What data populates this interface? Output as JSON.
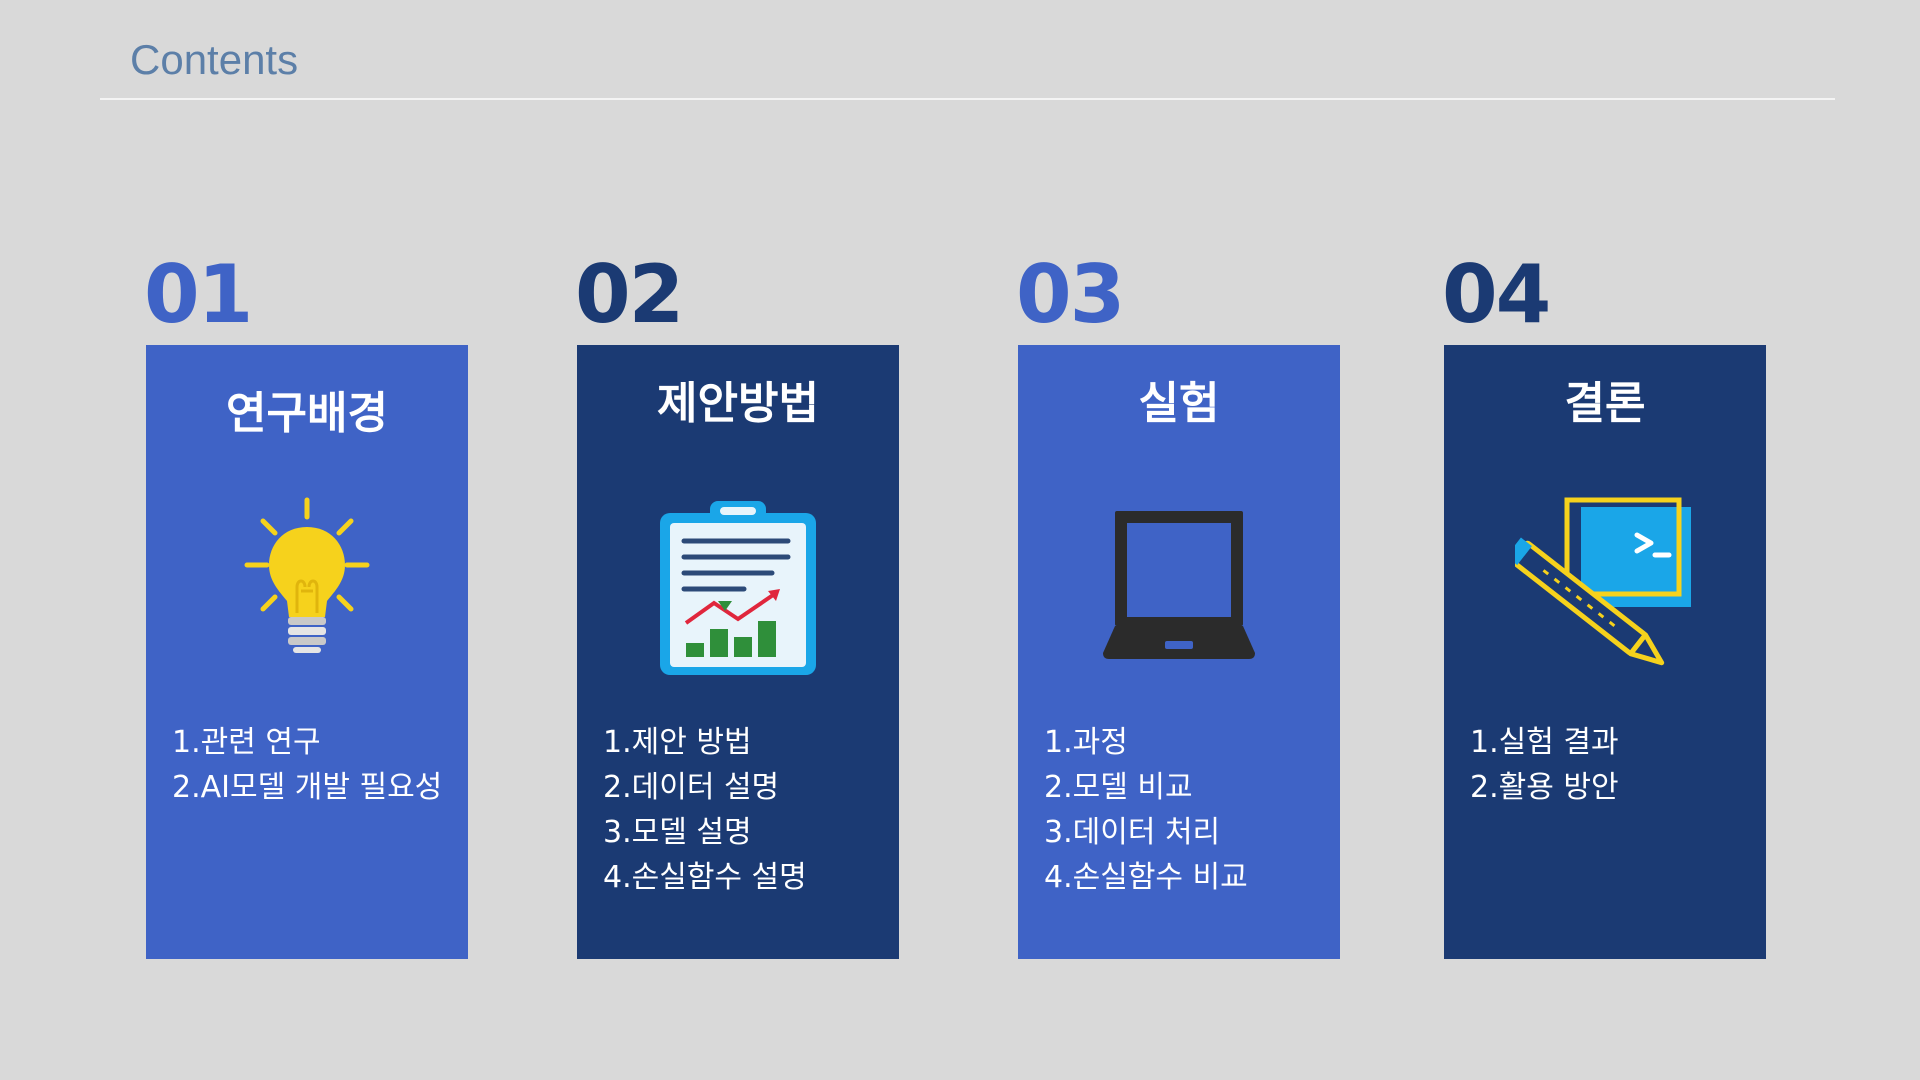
{
  "header": {
    "title": "Contents"
  },
  "sections": [
    {
      "number": "01",
      "heading": "연구배경",
      "icon": "lightbulb-icon",
      "items": [
        "1.관련 연구",
        "2.AI모델 개발 필요성"
      ]
    },
    {
      "number": "02",
      "heading": "제안방법",
      "icon": "clipboard-chart-icon",
      "items": [
        "1.제안 방법",
        "2.데이터 설명",
        "3.모델 설명",
        "4.손실함수 설명"
      ]
    },
    {
      "number": "03",
      "heading": "실험",
      "icon": "laptop-icon",
      "items": [
        "1.과정",
        "2.모델 비교",
        "3.데이터 처리",
        "4.손실함수 비교"
      ]
    },
    {
      "number": "04",
      "heading": "결론",
      "icon": "terminal-pencil-icon",
      "items": [
        "1.실험 결과",
        "2.활용 방안"
      ]
    }
  ],
  "colors": {
    "background": "#d9d9d9",
    "card_light": "#3f63c6",
    "card_dark": "#1b3a73",
    "title": "#5c7fa8",
    "accent_yellow": "#f6d21c",
    "accent_cyan": "#1aa6e8"
  }
}
